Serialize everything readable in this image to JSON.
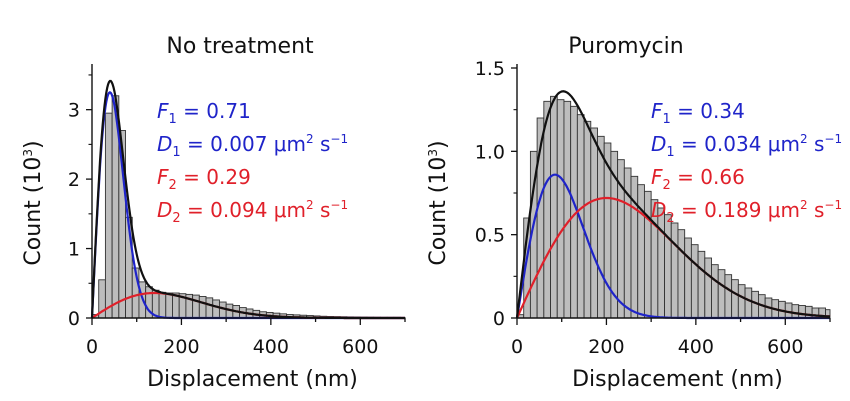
{
  "chart_data": [
    {
      "type": "bar",
      "title": "No treatment",
      "xlabel": "Displacement (nm)",
      "ylabel_main": "Count (10",
      "ylabel_exp": "3",
      "ylabel_close": ")",
      "xlim": [
        0,
        700
      ],
      "ylim": [
        0,
        3.6
      ],
      "xticks": [
        0,
        200,
        400,
        600
      ],
      "yticks": [
        0,
        1,
        2,
        3
      ],
      "ytick_labels": [
        "0",
        "1",
        "2",
        "3"
      ],
      "bin_width": 15,
      "bin_counts": [
        0.05,
        0.55,
        2.95,
        3.2,
        2.7,
        1.45,
        0.72,
        0.52,
        0.45,
        0.4,
        0.37,
        0.36,
        0.36,
        0.35,
        0.34,
        0.33,
        0.31,
        0.29,
        0.26,
        0.23,
        0.2,
        0.18,
        0.15,
        0.13,
        0.11,
        0.09,
        0.08,
        0.07,
        0.06,
        0.05,
        0.045,
        0.04,
        0.035,
        0.03,
        0.025,
        0.022,
        0.02,
        0.018,
        0.016,
        0.015,
        0.013,
        0.012,
        0.011,
        0.01,
        0.01,
        0.01,
        0.008
      ],
      "fit": {
        "amp1": 3.25,
        "sigma1": 40,
        "amp2": 0.36,
        "sigma2": 140
      },
      "annotations": [
        {
          "sym": "F",
          "sub": "1",
          "text": " = 0.71",
          "sup": "",
          "tail": "",
          "color": "#1f24c9"
        },
        {
          "sym": "D",
          "sub": "1",
          "text": " = 0.007 μm",
          "sup": "2",
          "tail": " s",
          "sup2": "−1",
          "color": "#1f24c9"
        },
        {
          "sym": "F",
          "sub": "2",
          "text": " = 0.29",
          "sup": "",
          "tail": "",
          "color": "#e0202a"
        },
        {
          "sym": "D",
          "sub": "2",
          "text": " = 0.094 μm",
          "sup": "2",
          "tail": " s",
          "sup2": "−1",
          "color": "#e0202a"
        }
      ]
    },
    {
      "type": "bar",
      "title": "Puromycin",
      "xlabel": "Displacement (nm)",
      "ylabel_main": "Count (10",
      "ylabel_exp": "3",
      "ylabel_close": ")",
      "xlim": [
        0,
        700
      ],
      "ylim": [
        0,
        1.5
      ],
      "xticks": [
        0,
        200,
        400,
        600
      ],
      "yticks": [
        0,
        0.5,
        1.0,
        1.5
      ],
      "ytick_labels": [
        "0",
        "0.5",
        "1.0",
        "1.5"
      ],
      "bin_width": 15,
      "bin_counts": [
        0.02,
        0.6,
        1.0,
        1.2,
        1.3,
        1.33,
        1.31,
        1.3,
        1.27,
        1.22,
        1.18,
        1.14,
        1.09,
        1.05,
        1.0,
        0.95,
        0.9,
        0.85,
        0.8,
        0.76,
        0.71,
        0.66,
        0.62,
        0.57,
        0.53,
        0.48,
        0.44,
        0.4,
        0.36,
        0.32,
        0.29,
        0.26,
        0.23,
        0.2,
        0.18,
        0.16,
        0.14,
        0.12,
        0.11,
        0.1,
        0.09,
        0.08,
        0.075,
        0.07,
        0.06,
        0.06,
        0.05
      ],
      "fit": {
        "amp1": 0.86,
        "sigma1": 85,
        "amp2": 0.72,
        "sigma2": 200
      },
      "annotations": [
        {
          "sym": "F",
          "sub": "1",
          "text": " = 0.34",
          "sup": "",
          "tail": "",
          "color": "#1f24c9"
        },
        {
          "sym": "D",
          "sub": "1",
          "text": " = 0.034 μm",
          "sup": "2",
          "tail": " s",
          "sup2": "−1",
          "color": "#1f24c9"
        },
        {
          "sym": "F",
          "sub": "2",
          "text": " = 0.66",
          "sup": "",
          "tail": "",
          "color": "#e0202a"
        },
        {
          "sym": "D",
          "sub": "2",
          "text": " = 0.189 μm",
          "sup": "2",
          "tail": " s",
          "sup2": "−1",
          "color": "#e0202a"
        }
      ]
    }
  ],
  "colors": {
    "bar_fill": "#bdbdbd",
    "bar_stroke": "#333333",
    "fit_total": "#111111",
    "fit_1": "#1f24c9",
    "fit_2": "#e0202a"
  }
}
